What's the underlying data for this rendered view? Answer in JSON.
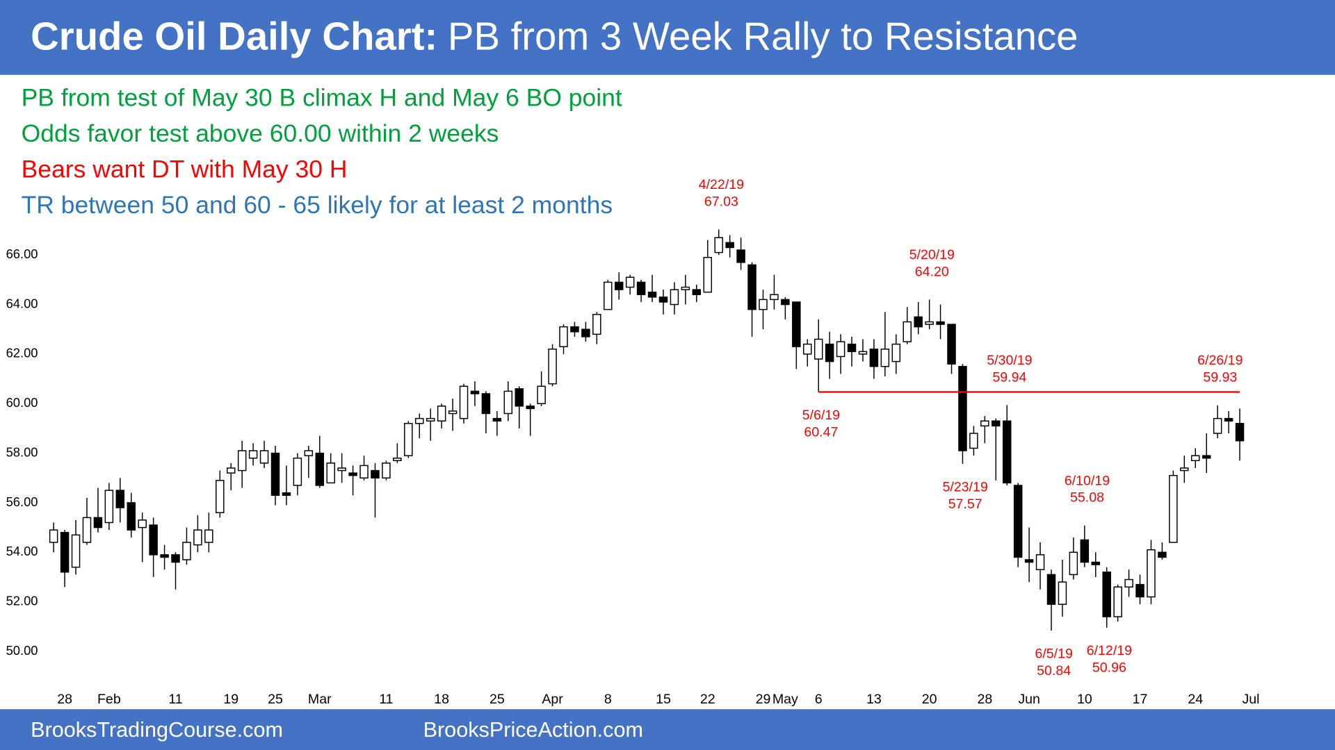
{
  "header": {
    "title_bold": "Crude Oil Daily Chart:",
    "title": "PB from 3 Week Rally to Resistance",
    "color": "#4472c4"
  },
  "notes": [
    {
      "text": "PB from test of May 30 B climax H and May 6 BO point",
      "color": "#00a03c"
    },
    {
      "text": "Odds favor test above 60.00 within 2 weeks",
      "color": "#00a03c"
    },
    {
      "text": "Bears want DT with May 30 H",
      "color": "#ff0000"
    },
    {
      "text": "TR between 50 and 60 - 65 likely for at least 2 months",
      "color": "#2e75b6"
    }
  ],
  "footer": {
    "left": "BrooksTradingCourse.com",
    "right": "BrooksPriceAction.com"
  },
  "chart_data": {
    "type": "candlestick",
    "up_color": "#ffffff",
    "down_color": "#000000",
    "annotation_color": "#ff0000",
    "categories": [
      null,
      "28",
      null,
      null,
      null,
      "Feb",
      null,
      null,
      null,
      null,
      null,
      "11",
      null,
      null,
      null,
      null,
      "19",
      null,
      null,
      null,
      "25",
      null,
      null,
      null,
      "Mar",
      null,
      null,
      null,
      null,
      null,
      "11",
      null,
      null,
      null,
      null,
      "18",
      null,
      null,
      null,
      null,
      "25",
      null,
      null,
      null,
      null,
      "Apr",
      null,
      null,
      null,
      null,
      "8",
      null,
      null,
      null,
      null,
      "15",
      null,
      null,
      null,
      "22",
      null,
      null,
      null,
      null,
      "29",
      null,
      "May",
      null,
      null,
      "6",
      null,
      null,
      null,
      null,
      "13",
      null,
      null,
      null,
      null,
      "20",
      null,
      null,
      null,
      null,
      "28",
      null,
      null,
      null,
      "Jun",
      null,
      null,
      null,
      null,
      "10",
      null,
      null,
      null,
      null,
      "17",
      null,
      null,
      null,
      null,
      "24",
      null,
      null,
      null,
      null,
      "Jul"
    ],
    "open": [
      54.4,
      54.8,
      53.4,
      54.4,
      55.4,
      55.2,
      56.5,
      56.0,
      55.0,
      55.1,
      53.9,
      53.9,
      53.7,
      54.3,
      54.4,
      55.6,
      57.2,
      57.3,
      57.8,
      57.6,
      58.0,
      56.4,
      56.7,
      57.9,
      58.0,
      56.8,
      57.3,
      57.2,
      57.0,
      57.3,
      57.0,
      57.7,
      57.9,
      59.2,
      59.3,
      59.3,
      59.6,
      59.4,
      60.5,
      60.4,
      59.4,
      59.6,
      60.6,
      59.9,
      60.0,
      60.8,
      62.3,
      63.1,
      63.0,
      62.8,
      63.8,
      64.9,
      64.7,
      64.9,
      64.5,
      64.3,
      64.0,
      64.6,
      64.6,
      64.5,
      66.1,
      66.5,
      66.2,
      65.6,
      63.8,
      64.2,
      64.2,
      64.1,
      62.0,
      61.8,
      62.4,
      61.9,
      62.4,
      62.0,
      62.2,
      61.5,
      61.7,
      62.5,
      63.5,
      63.2,
      63.3,
      63.2,
      61.5,
      58.2,
      59.1,
      59.3,
      59.3,
      56.7,
      53.7,
      53.3,
      53.1,
      51.9,
      53.1,
      54.5,
      53.6,
      53.2,
      51.4,
      52.6,
      52.7,
      52.2,
      54.0,
      54.4,
      57.3,
      57.7,
      57.9,
      58.8,
      59.4,
      59.2,
      null
    ],
    "high": [
      55.2,
      54.9,
      55.3,
      56.2,
      56.6,
      56.8,
      57.0,
      56.4,
      55.6,
      55.4,
      54.3,
      54.0,
      55.0,
      55.5,
      55.6,
      57.3,
      57.6,
      58.5,
      58.4,
      58.5,
      58.3,
      57.5,
      58.0,
      58.3,
      58.7,
      58.0,
      58.0,
      57.5,
      57.9,
      57.6,
      57.7,
      58.4,
      59.3,
      59.6,
      59.8,
      60.0,
      60.2,
      60.8,
      60.9,
      60.5,
      59.7,
      60.9,
      60.7,
      60.0,
      61.3,
      62.4,
      63.2,
      63.3,
      63.3,
      63.7,
      65.0,
      65.3,
      65.2,
      65.0,
      65.2,
      64.6,
      64.9,
      65.2,
      64.8,
      66.6,
      67.03,
      66.8,
      66.7,
      65.7,
      64.6,
      65.2,
      64.3,
      64.1,
      62.6,
      63.4,
      62.9,
      62.8,
      62.7,
      62.6,
      62.6,
      63.7,
      62.8,
      63.9,
      64.1,
      64.2,
      64.0,
      63.2,
      61.6,
      59.1,
      59.5,
      59.4,
      59.94,
      56.8,
      55.0,
      54.4,
      53.3,
      53.7,
      54.6,
      55.08,
      54.0,
      53.4,
      52.7,
      53.3,
      53.1,
      54.5,
      54.4,
      57.3,
      57.9,
      58.2,
      58.8,
      59.93,
      59.7,
      59.8,
      null
    ],
    "low": [
      54.0,
      52.6,
      53.1,
      54.3,
      54.8,
      54.9,
      55.2,
      54.6,
      53.6,
      53.0,
      53.3,
      52.5,
      53.5,
      54.0,
      54.0,
      55.4,
      56.5,
      56.6,
      57.5,
      57.4,
      55.9,
      55.9,
      56.3,
      57.0,
      56.6,
      56.8,
      56.8,
      56.3,
      56.9,
      55.4,
      56.9,
      57.6,
      57.8,
      58.6,
      58.5,
      59.0,
      58.9,
      59.2,
      59.9,
      58.8,
      58.7,
      59.3,
      59.0,
      58.7,
      59.9,
      60.7,
      62.0,
      62.7,
      62.5,
      62.4,
      63.8,
      64.2,
      64.4,
      64.1,
      64.1,
      63.6,
      63.6,
      64.0,
      64.1,
      64.5,
      66.0,
      65.9,
      65.4,
      62.7,
      63.0,
      63.8,
      63.4,
      61.4,
      61.5,
      60.47,
      61.0,
      61.2,
      61.5,
      61.7,
      61.0,
      61.1,
      61.2,
      62.4,
      62.8,
      63.0,
      62.6,
      61.2,
      57.57,
      57.9,
      58.4,
      56.9,
      56.7,
      53.4,
      52.8,
      52.5,
      50.84,
      51.4,
      52.9,
      53.4,
      53.0,
      50.96,
      51.2,
      52.2,
      51.9,
      51.9,
      53.7,
      54.4,
      56.8,
      57.4,
      57.2,
      58.6,
      58.8,
      57.7,
      null
    ],
    "close": [
      54.9,
      53.2,
      54.7,
      55.4,
      55.0,
      56.5,
      55.8,
      54.9,
      55.3,
      53.9,
      53.8,
      53.6,
      54.4,
      54.9,
      54.9,
      56.9,
      57.4,
      58.1,
      58.1,
      58.1,
      56.3,
      56.3,
      57.8,
      58.1,
      56.7,
      57.6,
      57.4,
      57.1,
      57.5,
      57.0,
      57.6,
      57.8,
      59.2,
      59.4,
      59.4,
      59.9,
      59.7,
      60.7,
      60.4,
      59.6,
      59.3,
      60.5,
      59.9,
      59.8,
      60.7,
      62.2,
      63.1,
      62.9,
      62.7,
      63.6,
      64.9,
      64.6,
      65.1,
      64.4,
      64.3,
      64.1,
      64.6,
      64.7,
      64.4,
      65.9,
      66.7,
      66.3,
      65.7,
      63.8,
      64.2,
      64.4,
      64.0,
      62.3,
      62.4,
      62.6,
      61.7,
      62.5,
      62.1,
      62.1,
      61.5,
      62.2,
      62.4,
      63.3,
      63.1,
      63.3,
      63.2,
      61.6,
      58.1,
      58.8,
      59.3,
      59.1,
      56.8,
      53.8,
      53.6,
      53.9,
      51.9,
      52.8,
      54.0,
      53.6,
      53.5,
      51.4,
      52.6,
      52.9,
      52.2,
      54.1,
      53.8,
      57.1,
      57.4,
      57.9,
      57.8,
      59.4,
      59.3,
      58.5,
      null
    ],
    "ylim": [
      48.8,
      68.5
    ],
    "yticks": [
      {
        "value": 50,
        "label": "50.00"
      },
      {
        "value": 52,
        "label": "52.00"
      },
      {
        "value": 54,
        "label": "54.00"
      },
      {
        "value": 56,
        "label": "56.00"
      },
      {
        "value": 58,
        "label": "58.00"
      },
      {
        "value": 60,
        "label": "60.00"
      },
      {
        "value": 62,
        "label": "62.00"
      },
      {
        "value": 64,
        "label": "64.00"
      },
      {
        "value": 66,
        "label": "66.00"
      }
    ],
    "annotations": [
      {
        "date": "4/22/19",
        "price": "67.03"
      },
      {
        "date": "5/6/19",
        "price": "60.47",
        "line": true
      },
      {
        "date": "5/20/19",
        "price": "64.20"
      },
      {
        "date": "5/23/19",
        "price": "57.57"
      },
      {
        "date": "5/30/19",
        "price": "59.94"
      },
      {
        "date": "6/5/19",
        "price": "50.84"
      },
      {
        "date": "6/10/19",
        "price": "55.08"
      },
      {
        "date": "6/12/19",
        "price": "50.96"
      },
      {
        "date": "6/26/19",
        "price": "59.93"
      }
    ]
  }
}
